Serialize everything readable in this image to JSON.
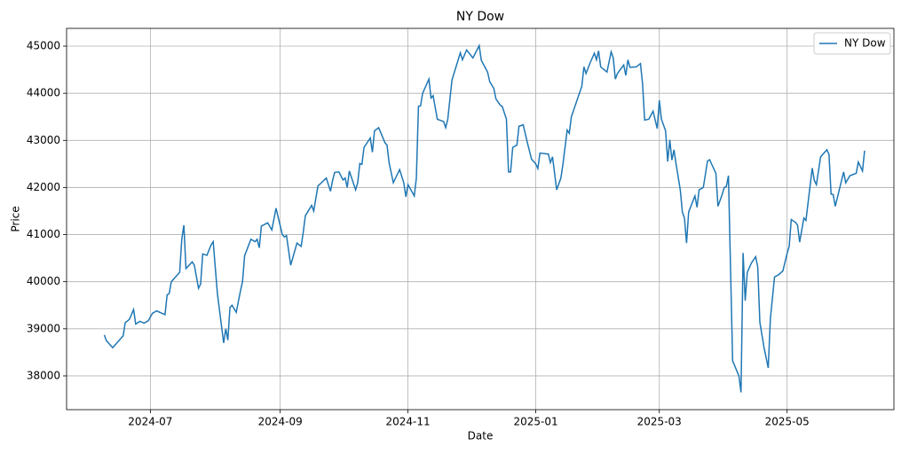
{
  "chart_data": {
    "type": "line",
    "title": "NY Dow",
    "xlabel": "Date",
    "ylabel": "Price",
    "x": [
      "2024-06-09",
      "2024-06-10",
      "2024-06-13",
      "2024-06-18",
      "2024-06-19",
      "2024-06-21",
      "2024-06-23",
      "2024-06-24",
      "2024-06-26",
      "2024-06-28",
      "2024-06-30",
      "2024-07-02",
      "2024-07-04",
      "2024-07-08",
      "2024-07-09",
      "2024-07-10",
      "2024-07-11",
      "2024-07-15",
      "2024-07-16",
      "2024-07-17",
      "2024-07-18",
      "2024-07-21",
      "2024-07-22",
      "2024-07-24",
      "2024-07-25",
      "2024-07-26",
      "2024-07-28",
      "2024-07-30",
      "2024-07-31",
      "2024-08-02",
      "2024-08-05",
      "2024-08-06",
      "2024-08-07",
      "2024-08-08",
      "2024-08-09",
      "2024-08-11",
      "2024-08-13",
      "2024-08-14",
      "2024-08-15",
      "2024-08-18",
      "2024-08-20",
      "2024-08-21",
      "2024-08-22",
      "2024-08-23",
      "2024-08-26",
      "2024-08-28",
      "2024-08-30",
      "2024-09-02",
      "2024-09-03",
      "2024-09-04",
      "2024-09-06",
      "2024-09-09",
      "2024-09-11",
      "2024-09-12",
      "2024-09-13",
      "2024-09-16",
      "2024-09-17",
      "2024-09-19",
      "2024-09-23",
      "2024-09-25",
      "2024-09-26",
      "2024-09-27",
      "2024-09-29",
      "2024-10-01",
      "2024-10-02",
      "2024-10-03",
      "2024-10-04",
      "2024-10-07",
      "2024-10-08",
      "2024-10-09",
      "2024-10-10",
      "2024-10-11",
      "2024-10-14",
      "2024-10-15",
      "2024-10-16",
      "2024-10-18",
      "2024-10-21",
      "2024-10-22",
      "2024-10-23",
      "2024-10-25",
      "2024-10-28",
      "2024-10-30",
      "2024-10-31",
      "2024-11-01",
      "2024-11-04",
      "2024-11-05",
      "2024-11-06",
      "2024-11-07",
      "2024-11-08",
      "2024-11-11",
      "2024-11-12",
      "2024-11-13",
      "2024-11-15",
      "2024-11-18",
      "2024-11-19",
      "2024-11-20",
      "2024-11-22",
      "2024-11-26",
      "2024-11-27",
      "2024-11-29",
      "2024-12-02",
      "2024-12-05",
      "2024-12-06",
      "2024-12-09",
      "2024-12-10",
      "2024-12-12",
      "2024-12-13",
      "2024-12-15",
      "2024-12-16",
      "2024-12-18",
      "2024-12-19",
      "2024-12-20",
      "2024-12-21",
      "2024-12-23",
      "2024-12-24",
      "2024-12-26",
      "2024-12-28",
      "2024-12-30",
      "2025-01-01",
      "2025-01-02",
      "2025-01-03",
      "2025-01-07",
      "2025-01-08",
      "2025-01-09",
      "2025-01-11",
      "2025-01-13",
      "2025-01-14",
      "2025-01-16",
      "2025-01-17",
      "2025-01-18",
      "2025-01-23",
      "2025-01-24",
      "2025-01-25",
      "2025-01-27",
      "2025-01-29",
      "2025-01-30",
      "2025-01-31",
      "2025-02-01",
      "2025-02-04",
      "2025-02-06",
      "2025-02-07",
      "2025-02-08",
      "2025-02-09",
      "2025-02-12",
      "2025-02-13",
      "2025-02-14",
      "2025-02-15",
      "2025-02-18",
      "2025-02-20",
      "2025-02-21",
      "2025-02-22",
      "2025-02-24",
      "2025-02-26",
      "2025-02-28",
      "2025-03-01",
      "2025-03-02",
      "2025-03-04",
      "2025-03-05",
      "2025-03-06",
      "2025-03-07",
      "2025-03-08",
      "2025-03-09",
      "2025-03-11",
      "2025-03-12",
      "2025-03-13",
      "2025-03-14",
      "2025-03-15",
      "2025-03-18",
      "2025-03-19",
      "2025-03-20",
      "2025-03-22",
      "2025-03-24",
      "2025-03-25",
      "2025-03-28",
      "2025-03-29",
      "2025-03-31",
      "2025-04-01",
      "2025-04-02",
      "2025-04-03",
      "2025-04-05",
      "2025-04-08",
      "2025-04-09",
      "2025-04-10",
      "2025-04-11",
      "2025-04-12",
      "2025-04-14",
      "2025-04-16",
      "2025-04-17",
      "2025-04-18",
      "2025-04-20",
      "2025-04-22",
      "2025-04-23",
      "2025-04-25",
      "2025-04-27",
      "2025-04-29",
      "2025-05-01",
      "2025-05-02",
      "2025-05-03",
      "2025-05-05",
      "2025-05-06",
      "2025-05-07",
      "2025-05-09",
      "2025-05-10",
      "2025-05-13",
      "2025-05-14",
      "2025-05-15",
      "2025-05-17",
      "2025-05-20",
      "2025-05-21",
      "2025-05-22",
      "2025-05-23",
      "2025-05-24",
      "2025-05-28",
      "2025-05-29",
      "2025-05-31",
      "2025-06-03",
      "2025-06-04",
      "2025-06-06",
      "2025-06-07"
    ],
    "series": [
      {
        "name": "NY Dow",
        "color": "#1f77b4",
        "values": [
          38870,
          38750,
          38600,
          38850,
          39130,
          39200,
          39410,
          39100,
          39160,
          39120,
          39170,
          39330,
          39380,
          39300,
          39720,
          39750,
          40000,
          40200,
          40900,
          41200,
          40280,
          40420,
          40350,
          39860,
          39950,
          40590,
          40560,
          40780,
          40850,
          39750,
          38700,
          39000,
          38760,
          39450,
          39500,
          39350,
          39800,
          40000,
          40550,
          40900,
          40850,
          40900,
          40720,
          41180,
          41250,
          41100,
          41560,
          41000,
          40950,
          40980,
          40350,
          40820,
          40750,
          41050,
          41400,
          41620,
          41500,
          42030,
          42200,
          41920,
          42150,
          42320,
          42330,
          42160,
          42200,
          42000,
          42350,
          41950,
          42100,
          42510,
          42490,
          42850,
          43050,
          42750,
          43200,
          43270,
          42950,
          42900,
          42520,
          42100,
          42380,
          42100,
          41800,
          42060,
          41820,
          42200,
          43720,
          43730,
          44000,
          44300,
          43900,
          43950,
          43450,
          43400,
          43270,
          43450,
          44280,
          44860,
          44710,
          44920,
          44750,
          45010,
          44700,
          44450,
          44250,
          44100,
          43880,
          43750,
          43720,
          43450,
          42330,
          42330,
          42850,
          42900,
          43300,
          43330,
          42950,
          42600,
          42500,
          42400,
          42730,
          42710,
          42530,
          42650,
          41950,
          42200,
          42500,
          43220,
          43150,
          43500,
          44150,
          44560,
          44420,
          44650,
          44850,
          44710,
          44900,
          44560,
          44450,
          44880,
          44750,
          44300,
          44420,
          44600,
          44380,
          44710,
          44550,
          44560,
          44630,
          44200,
          43430,
          43450,
          43620,
          43250,
          43850,
          43450,
          43200,
          42550,
          43010,
          42580,
          42800,
          42500,
          41950,
          41480,
          41350,
          40820,
          41480,
          41820,
          41580,
          41950,
          42000,
          42560,
          42590,
          42300,
          41600,
          41850,
          42000,
          42020,
          42250,
          38320,
          38000,
          37650,
          40610,
          39600,
          40200,
          40400,
          40530,
          40310,
          39140,
          38600,
          38170,
          39200,
          40100,
          40150,
          40230,
          40600,
          40750,
          41320,
          41260,
          41200,
          40840,
          41350,
          41300,
          42410,
          42150,
          42060,
          42650,
          42800,
          42700,
          41860,
          41850,
          41600,
          42330,
          42100,
          42250,
          42300,
          42540,
          42350,
          42780
        ]
      }
    ],
    "xlim": [
      "2024-05-22",
      "2025-06-21"
    ],
    "xticks": [
      {
        "value": "2024-07-01",
        "label": "2024-07"
      },
      {
        "value": "2024-09-01",
        "label": "2024-09"
      },
      {
        "value": "2024-11-01",
        "label": "2024-11"
      },
      {
        "value": "2025-01-01",
        "label": "2025-01"
      },
      {
        "value": "2025-03-01",
        "label": "2025-03"
      },
      {
        "value": "2025-05-01",
        "label": "2025-05"
      }
    ],
    "ylim": [
      37284,
      45377
    ],
    "yticks": [
      38000,
      39000,
      40000,
      41000,
      42000,
      43000,
      44000,
      45000
    ],
    "grid": true,
    "legend": "upper right"
  }
}
